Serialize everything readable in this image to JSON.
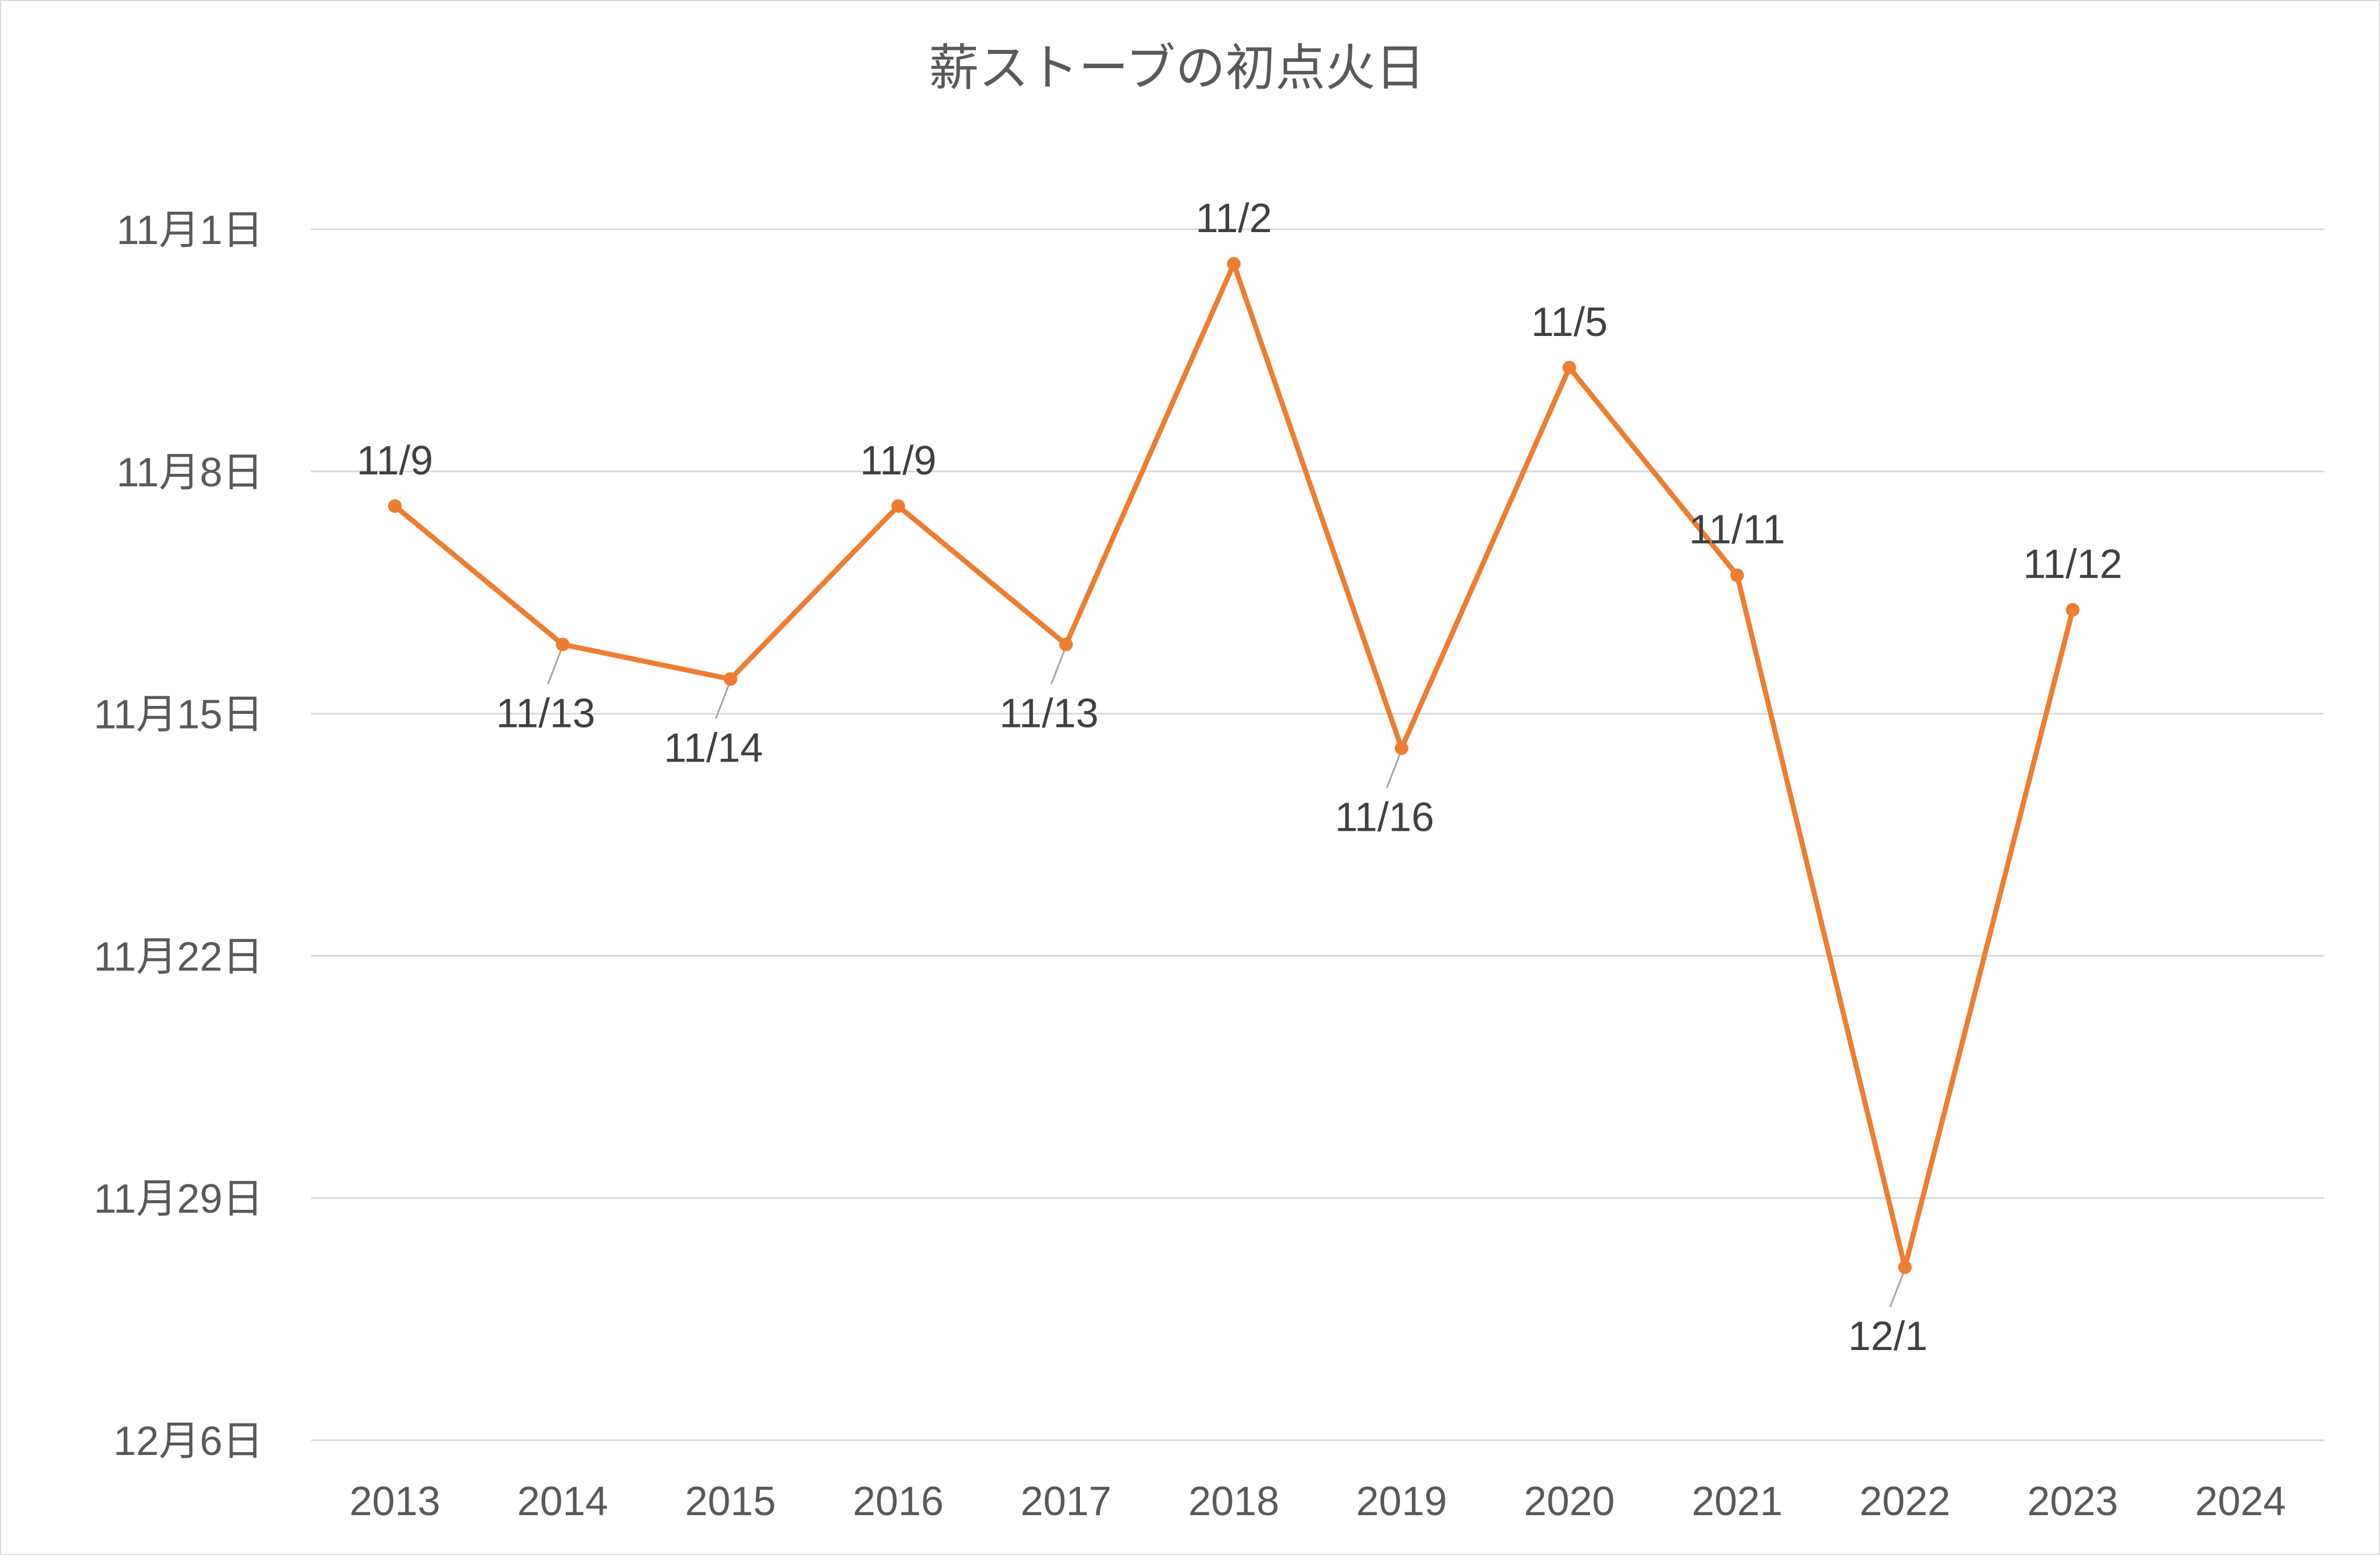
{
  "chart_data": {
    "type": "line",
    "title": "薪ストーブの初点火日",
    "xlabel": "",
    "ylabel": "",
    "categories": [
      "2013",
      "2014",
      "2015",
      "2016",
      "2017",
      "2018",
      "2019",
      "2020",
      "2021",
      "2022",
      "2023",
      "2024"
    ],
    "y_axis": {
      "reversed": true,
      "range_days_from_nov1": [
        0,
        35
      ],
      "tick_values": [
        0,
        7,
        14,
        21,
        28,
        35
      ],
      "tick_labels": [
        "11月1日",
        "11月8日",
        "11月15日",
        "11月22日",
        "11月29日",
        "12月6日"
      ]
    },
    "series": [
      {
        "color": "#ed7d31",
        "dates": [
          "11/9",
          "11/13",
          "11/14",
          "11/9",
          "11/13",
          "11/2",
          "11/16",
          "11/5",
          "11/11",
          "12/1",
          "11/12",
          null
        ],
        "values_days_from_nov1": [
          8,
          12,
          13,
          8,
          12,
          1,
          15,
          4,
          10,
          30,
          11,
          null
        ],
        "label_position": [
          "above",
          "below",
          "below",
          "above",
          "below",
          "above",
          "below",
          "above",
          "above",
          "below",
          "above",
          null
        ]
      }
    ],
    "grid": true,
    "legend": "none"
  }
}
